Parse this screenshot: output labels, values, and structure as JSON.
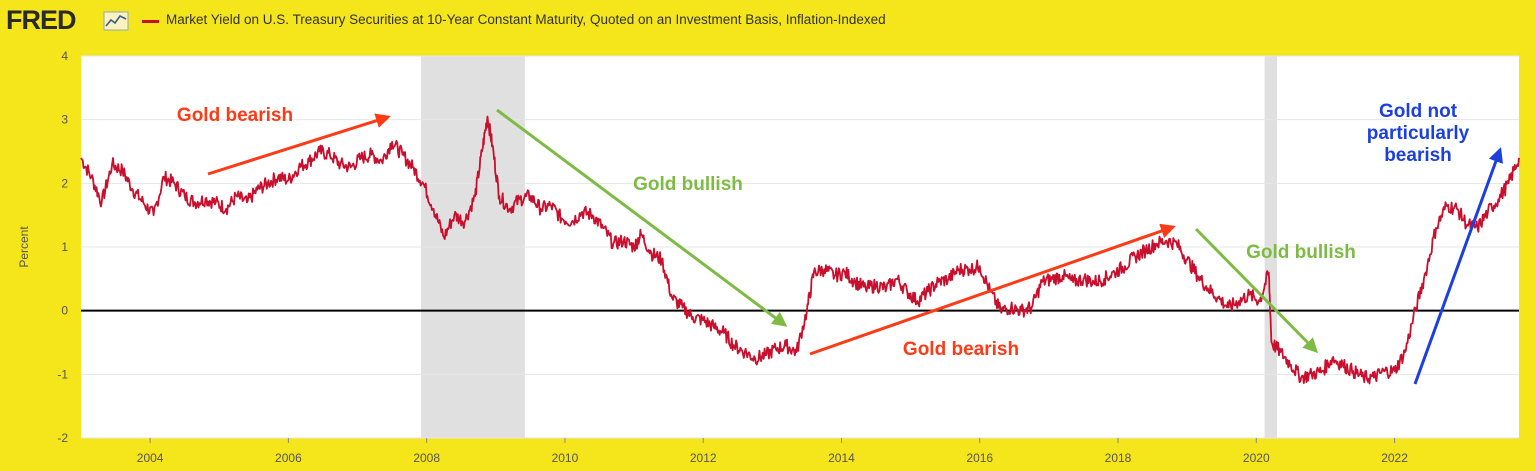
{
  "header": {
    "logo": "FRED",
    "logo_icon": "line-chart-icon",
    "series_title": "Market Yield on U.S. Treasury Securities at 10-Year Constant Maturity, Quoted on an Investment Basis, Inflation-Indexed"
  },
  "colors": {
    "background": "#f5e51b",
    "series": "#c8102e",
    "recession": "#e0e0e0",
    "bearish": "#ff3a17",
    "bullish": "#7dbb44",
    "neutral": "#1c3fe0"
  },
  "chart_data": {
    "type": "line",
    "ylabel": "Percent",
    "xlabel": "",
    "ylim": [
      -2,
      4
    ],
    "xlim": [
      2003.0,
      2023.8
    ],
    "yticks": [
      "4",
      "3",
      "2",
      "1",
      "0",
      "-1",
      "-2"
    ],
    "xticks": [
      "2004",
      "2006",
      "2008",
      "2010",
      "2012",
      "2014",
      "2016",
      "2018",
      "2020",
      "2022"
    ],
    "grid": true,
    "zero_line": true,
    "recessions": [
      [
        2007.92,
        2009.42
      ],
      [
        2020.12,
        2020.3
      ]
    ],
    "series": [
      {
        "name": "Market Yield on U.S. Treasury Securities at 10-Year Constant Maturity, Quoted on an Investment Basis, Inflation-Indexed",
        "x": [
          2003.0,
          2003.15,
          2003.3,
          2003.45,
          2003.6,
          2003.75,
          2003.9,
          2004.05,
          2004.2,
          2004.35,
          2004.5,
          2004.65,
          2004.8,
          2004.95,
          2005.1,
          2005.25,
          2005.4,
          2005.55,
          2005.7,
          2005.85,
          2006.0,
          2006.15,
          2006.3,
          2006.45,
          2006.6,
          2006.75,
          2006.9,
          2007.05,
          2007.2,
          2007.35,
          2007.5,
          2007.65,
          2007.8,
          2007.95,
          2008.1,
          2008.25,
          2008.4,
          2008.55,
          2008.7,
          2008.8,
          2008.88,
          2008.95,
          2009.05,
          2009.2,
          2009.35,
          2009.5,
          2009.65,
          2009.8,
          2009.95,
          2010.1,
          2010.25,
          2010.4,
          2010.55,
          2010.7,
          2010.85,
          2011.0,
          2011.1,
          2011.25,
          2011.4,
          2011.55,
          2011.7,
          2011.85,
          2012.0,
          2012.15,
          2012.3,
          2012.45,
          2012.6,
          2012.75,
          2012.9,
          2013.05,
          2013.2,
          2013.35,
          2013.5,
          2013.6,
          2013.75,
          2013.9,
          2014.05,
          2014.2,
          2014.35,
          2014.5,
          2014.65,
          2014.8,
          2014.95,
          2015.1,
          2015.25,
          2015.4,
          2015.55,
          2015.7,
          2015.85,
          2016.0,
          2016.15,
          2016.3,
          2016.45,
          2016.6,
          2016.75,
          2016.9,
          2017.05,
          2017.2,
          2017.35,
          2017.5,
          2017.65,
          2017.8,
          2017.95,
          2018.1,
          2018.25,
          2018.4,
          2018.55,
          2018.7,
          2018.85,
          2019.0,
          2019.15,
          2019.3,
          2019.45,
          2019.6,
          2019.75,
          2019.9,
          2020.05,
          2020.18,
          2020.22,
          2020.35,
          2020.5,
          2020.65,
          2020.8,
          2020.95,
          2021.1,
          2021.25,
          2021.4,
          2021.55,
          2021.7,
          2021.85,
          2022.0,
          2022.15,
          2022.3,
          2022.45,
          2022.6,
          2022.75,
          2022.9,
          2023.05,
          2023.2,
          2023.35,
          2023.5,
          2023.65,
          2023.8
        ],
        "values": [
          2.4,
          2.1,
          1.7,
          2.3,
          2.2,
          1.9,
          1.7,
          1.5,
          2.1,
          2.0,
          1.8,
          1.7,
          1.75,
          1.7,
          1.6,
          1.8,
          1.7,
          1.9,
          2.0,
          2.1,
          2.05,
          2.25,
          2.35,
          2.5,
          2.45,
          2.3,
          2.25,
          2.4,
          2.45,
          2.35,
          2.65,
          2.45,
          2.25,
          2.0,
          1.6,
          1.15,
          1.5,
          1.4,
          1.8,
          2.5,
          3.05,
          2.6,
          1.8,
          1.6,
          1.75,
          1.8,
          1.6,
          1.65,
          1.45,
          1.4,
          1.55,
          1.5,
          1.3,
          1.05,
          1.1,
          1.0,
          1.2,
          0.9,
          0.8,
          0.2,
          0.05,
          -0.1,
          -0.15,
          -0.25,
          -0.35,
          -0.55,
          -0.65,
          -0.75,
          -0.7,
          -0.6,
          -0.55,
          -0.65,
          0.0,
          0.6,
          0.65,
          0.55,
          0.6,
          0.45,
          0.35,
          0.4,
          0.35,
          0.5,
          0.3,
          0.15,
          0.3,
          0.45,
          0.5,
          0.65,
          0.65,
          0.7,
          0.3,
          0.0,
          0.05,
          0.0,
          0.05,
          0.45,
          0.5,
          0.55,
          0.45,
          0.5,
          0.45,
          0.5,
          0.6,
          0.7,
          0.85,
          0.95,
          1.05,
          1.1,
          1.05,
          0.8,
          0.55,
          0.35,
          0.2,
          0.05,
          0.15,
          0.25,
          0.15,
          0.6,
          -0.5,
          -0.65,
          -0.85,
          -1.05,
          -1.0,
          -0.95,
          -0.75,
          -0.85,
          -0.95,
          -1.05,
          -1.05,
          -0.95,
          -0.95,
          -0.65,
          0.0,
          0.6,
          1.3,
          1.65,
          1.6,
          1.35,
          1.3,
          1.55,
          1.75,
          2.0,
          2.4
        ]
      }
    ],
    "annotations": [
      {
        "text": "Gold bearish",
        "color": "bearish"
      },
      {
        "text": "Gold bullish",
        "color": "bullish"
      },
      {
        "text": "Gold bearish",
        "color": "bearish"
      },
      {
        "text": "Gold bullish",
        "color": "bullish"
      },
      {
        "text": "Gold not particularly bearish",
        "color": "neutral"
      }
    ]
  }
}
